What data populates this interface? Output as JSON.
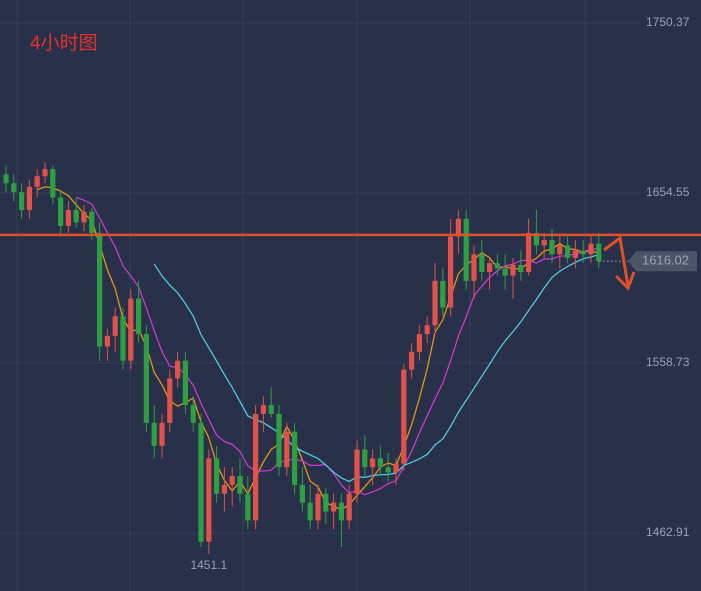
{
  "chart_data": {
    "type": "candlestick",
    "title": "4小时图",
    "title_color": "#e8302a",
    "ylim": [
      1430.2,
      1763.3
    ],
    "yticks": [
      1750.37,
      1654.55,
      1558.73,
      1462.91
    ],
    "grid": true,
    "up_color": "#e0524a",
    "down_color": "#2ea043",
    "candles": [
      [
        1665,
        1670,
        1655,
        1660
      ],
      [
        1660,
        1665,
        1650,
        1655
      ],
      [
        1655,
        1660,
        1640,
        1645
      ],
      [
        1645,
        1662,
        1640,
        1658
      ],
      [
        1658,
        1668,
        1652,
        1664
      ],
      [
        1664,
        1672,
        1660,
        1668
      ],
      [
        1668,
        1670,
        1648,
        1652
      ],
      [
        1652,
        1656,
        1630,
        1636
      ],
      [
        1636,
        1650,
        1632,
        1645
      ],
      [
        1645,
        1652,
        1635,
        1638
      ],
      [
        1638,
        1648,
        1633,
        1644
      ],
      [
        1644,
        1646,
        1628,
        1632
      ],
      [
        1632,
        1638,
        1560,
        1568
      ],
      [
        1568,
        1578,
        1560,
        1574
      ],
      [
        1574,
        1590,
        1565,
        1585
      ],
      [
        1585,
        1590,
        1555,
        1560
      ],
      [
        1560,
        1600,
        1555,
        1595
      ],
      [
        1595,
        1605,
        1570,
        1575
      ],
      [
        1575,
        1580,
        1520,
        1525
      ],
      [
        1525,
        1535,
        1505,
        1512
      ],
      [
        1512,
        1530,
        1505,
        1525
      ],
      [
        1525,
        1555,
        1520,
        1550
      ],
      [
        1550,
        1565,
        1545,
        1560
      ],
      [
        1560,
        1565,
        1530,
        1535
      ],
      [
        1535,
        1540,
        1520,
        1525
      ],
      [
        1525,
        1530,
        1455,
        1458
      ],
      [
        1458,
        1510,
        1451.1,
        1505
      ],
      [
        1505,
        1512,
        1480,
        1485
      ],
      [
        1485,
        1500,
        1475,
        1490
      ],
      [
        1490,
        1500,
        1478,
        1495
      ],
      [
        1495,
        1505,
        1480,
        1485
      ],
      [
        1485,
        1495,
        1465,
        1470
      ],
      [
        1470,
        1535,
        1465,
        1530
      ],
      [
        1530,
        1540,
        1520,
        1535
      ],
      [
        1535,
        1545,
        1528,
        1530
      ],
      [
        1530,
        1535,
        1495,
        1500
      ],
      [
        1500,
        1525,
        1495,
        1520
      ],
      [
        1520,
        1525,
        1485,
        1490
      ],
      [
        1490,
        1500,
        1475,
        1480
      ],
      [
        1480,
        1490,
        1465,
        1470
      ],
      [
        1470,
        1490,
        1465,
        1485
      ],
      [
        1485,
        1488,
        1468,
        1475
      ],
      [
        1475,
        1485,
        1465,
        1480
      ],
      [
        1480,
        1485,
        1455,
        1470
      ],
      [
        1470,
        1490,
        1465,
        1485
      ],
      [
        1485,
        1515,
        1480,
        1510
      ],
      [
        1510,
        1518,
        1495,
        1500
      ],
      [
        1500,
        1510,
        1490,
        1505
      ],
      [
        1505,
        1512,
        1495,
        1500
      ],
      [
        1500,
        1508,
        1492,
        1497
      ],
      [
        1497,
        1505,
        1490,
        1502
      ],
      [
        1502,
        1558,
        1498,
        1555
      ],
      [
        1555,
        1570,
        1550,
        1565
      ],
      [
        1565,
        1580,
        1560,
        1575
      ],
      [
        1575,
        1585,
        1570,
        1580
      ],
      [
        1580,
        1615,
        1575,
        1605
      ],
      [
        1605,
        1612,
        1585,
        1590
      ],
      [
        1590,
        1640,
        1585,
        1630
      ],
      [
        1630,
        1645,
        1620,
        1640
      ],
      [
        1640,
        1645,
        1600,
        1605
      ],
      [
        1605,
        1625,
        1595,
        1620
      ],
      [
        1620,
        1628,
        1605,
        1610
      ],
      [
        1610,
        1618,
        1600,
        1615
      ],
      [
        1615,
        1620,
        1608,
        1612
      ],
      [
        1612,
        1620,
        1600,
        1608
      ],
      [
        1608,
        1618,
        1595,
        1614
      ],
      [
        1614,
        1622,
        1605,
        1610
      ],
      [
        1610,
        1640,
        1608,
        1632
      ],
      [
        1632,
        1645,
        1620,
        1625
      ],
      [
        1625,
        1632,
        1618,
        1628
      ],
      [
        1628,
        1634,
        1615,
        1620
      ],
      [
        1620,
        1630,
        1612,
        1625
      ],
      [
        1625,
        1630,
        1615,
        1618
      ],
      [
        1618,
        1628,
        1612,
        1622
      ],
      [
        1622,
        1628,
        1615,
        1620
      ],
      [
        1620,
        1630,
        1615,
        1626
      ],
      [
        1626,
        1632,
        1612,
        1616.02
      ]
    ],
    "moving_averages": [
      {
        "period": 5,
        "color": "#f39c12"
      },
      {
        "period": 10,
        "color": "#d63ad6"
      },
      {
        "period": 20,
        "color": "#4fd6e8"
      }
    ],
    "resistance": {
      "value": 1630.9,
      "color": "#e0502a"
    },
    "low_label_index": 26,
    "last_index": 76
  }
}
